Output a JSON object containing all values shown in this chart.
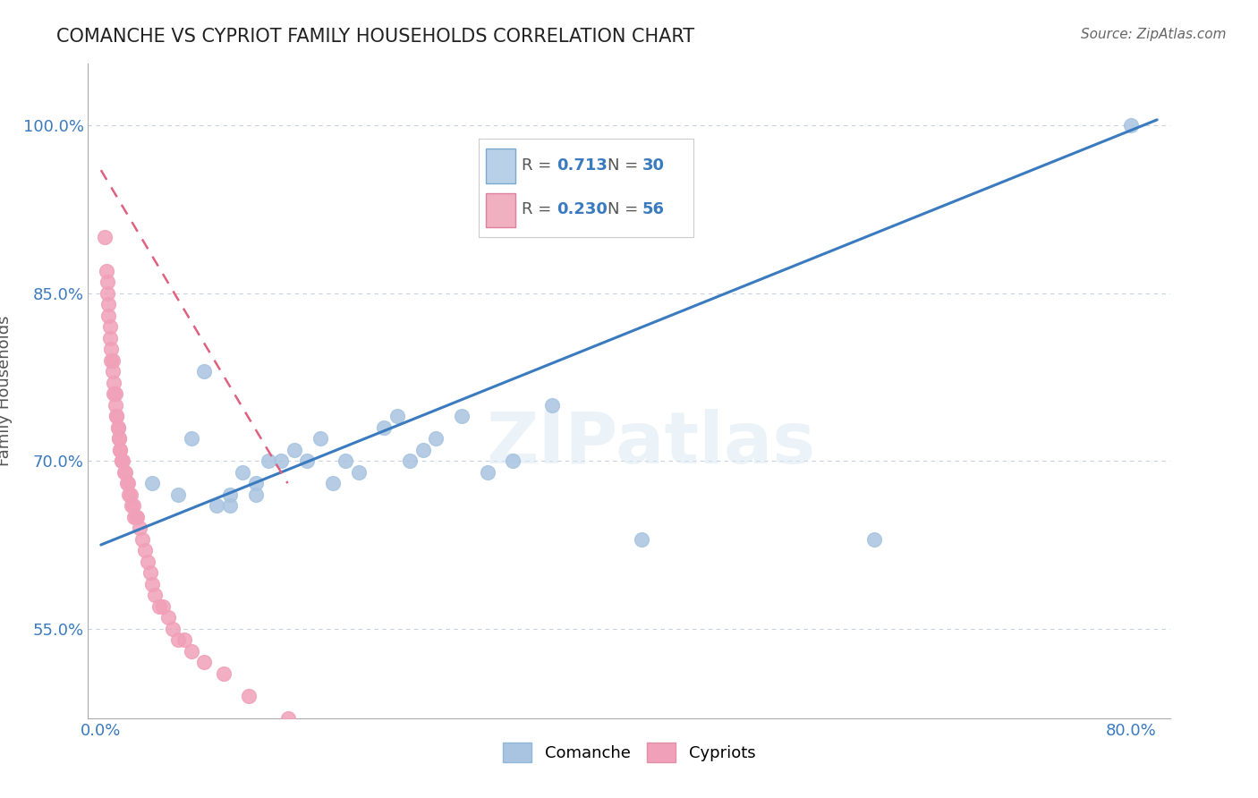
{
  "title": "COMANCHE VS CYPRIOT FAMILY HOUSEHOLDS CORRELATION CHART",
  "source": "Source: ZipAtlas.com",
  "ylabel": "Family Households",
  "xlim": [
    -0.01,
    0.83
  ],
  "ylim": [
    0.47,
    1.055
  ],
  "xticks": [
    0.0,
    0.2,
    0.4,
    0.6,
    0.8
  ],
  "xticklabels": [
    "0.0%",
    "",
    "",
    "",
    "80.0%"
  ],
  "yticks": [
    0.55,
    0.7,
    0.85,
    1.0
  ],
  "yticklabels": [
    "55.0%",
    "70.0%",
    "85.0%",
    "100.0%"
  ],
  "comanche_R": 0.713,
  "comanche_N": 30,
  "cypriot_R": 0.23,
  "cypriot_N": 56,
  "comanche_color": "#a8c4e0",
  "cypriot_color": "#f0a0b8",
  "comanche_line_color": "#3a7abf",
  "cypriot_line_color": "#e06080",
  "comanche_x": [
    0.04,
    0.06,
    0.07,
    0.08,
    0.09,
    0.1,
    0.1,
    0.11,
    0.12,
    0.12,
    0.13,
    0.14,
    0.15,
    0.16,
    0.17,
    0.18,
    0.19,
    0.2,
    0.22,
    0.23,
    0.24,
    0.25,
    0.26,
    0.28,
    0.3,
    0.32,
    0.35,
    0.42,
    0.6,
    0.8
  ],
  "comanche_y": [
    0.68,
    0.67,
    0.72,
    0.78,
    0.66,
    0.66,
    0.67,
    0.69,
    0.67,
    0.68,
    0.7,
    0.7,
    0.71,
    0.7,
    0.72,
    0.68,
    0.7,
    0.69,
    0.73,
    0.74,
    0.7,
    0.71,
    0.72,
    0.74,
    0.69,
    0.7,
    0.75,
    0.63,
    0.63,
    1.0
  ],
  "cypriot_x": [
    0.003,
    0.004,
    0.005,
    0.005,
    0.006,
    0.006,
    0.007,
    0.007,
    0.008,
    0.008,
    0.009,
    0.009,
    0.01,
    0.01,
    0.011,
    0.011,
    0.012,
    0.012,
    0.013,
    0.013,
    0.014,
    0.014,
    0.015,
    0.015,
    0.016,
    0.016,
    0.017,
    0.018,
    0.019,
    0.02,
    0.021,
    0.022,
    0.023,
    0.024,
    0.025,
    0.026,
    0.027,
    0.028,
    0.03,
    0.032,
    0.034,
    0.036,
    0.038,
    0.04,
    0.042,
    0.045,
    0.048,
    0.052,
    0.056,
    0.06,
    0.065,
    0.07,
    0.08,
    0.095,
    0.115,
    0.145
  ],
  "cypriot_y": [
    0.9,
    0.87,
    0.86,
    0.85,
    0.84,
    0.83,
    0.82,
    0.81,
    0.8,
    0.79,
    0.79,
    0.78,
    0.77,
    0.76,
    0.76,
    0.75,
    0.74,
    0.74,
    0.73,
    0.73,
    0.72,
    0.72,
    0.71,
    0.71,
    0.7,
    0.7,
    0.7,
    0.69,
    0.69,
    0.68,
    0.68,
    0.67,
    0.67,
    0.66,
    0.66,
    0.65,
    0.65,
    0.65,
    0.64,
    0.63,
    0.62,
    0.61,
    0.6,
    0.59,
    0.58,
    0.57,
    0.57,
    0.56,
    0.55,
    0.54,
    0.54,
    0.53,
    0.52,
    0.51,
    0.49,
    0.47
  ],
  "blue_line_x0": 0.0,
  "blue_line_y0": 0.625,
  "blue_line_x1": 0.82,
  "blue_line_y1": 1.005,
  "pink_line_x0": 0.0,
  "pink_line_y0": 0.96,
  "pink_line_x1": 0.145,
  "pink_line_y1": 0.68
}
